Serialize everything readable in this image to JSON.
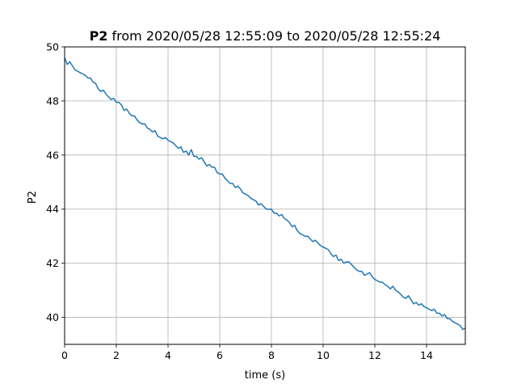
{
  "chart_data": {
    "type": "line",
    "title": {
      "bold": "P2",
      "rest": " from 2020/05/28 12:55:09 to 2020/05/28 12:55:24"
    },
    "xlabel": "time (s)",
    "ylabel": "P2",
    "xlim": [
      0,
      15.5
    ],
    "ylim": [
      39,
      50
    ],
    "x_ticks": [
      0,
      2,
      4,
      6,
      8,
      10,
      12,
      14
    ],
    "y_ticks": [
      40,
      42,
      44,
      46,
      48,
      50
    ],
    "grid": true,
    "series": [
      {
        "color": "#1f77b4",
        "x": [
          0,
          0.1,
          0.2,
          0.3,
          0.4,
          0.5,
          0.6,
          0.7,
          0.8,
          0.9,
          1.0,
          1.1,
          1.2,
          1.3,
          1.4,
          1.5,
          1.6,
          1.7,
          1.8,
          1.9,
          2.0,
          2.1,
          2.2,
          2.3,
          2.4,
          2.5,
          2.6,
          2.7,
          2.8,
          2.9,
          3.0,
          3.1,
          3.2,
          3.3,
          3.4,
          3.5,
          3.6,
          3.7,
          3.8,
          3.9,
          4.0,
          4.1,
          4.2,
          4.3,
          4.4,
          4.5,
          4.6,
          4.7,
          4.8,
          4.9,
          5.0,
          5.1,
          5.2,
          5.3,
          5.4,
          5.5,
          5.6,
          5.7,
          5.8,
          5.9,
          6.0,
          6.1,
          6.2,
          6.3,
          6.4,
          6.5,
          6.6,
          6.7,
          6.8,
          6.9,
          7.0,
          7.1,
          7.2,
          7.3,
          7.4,
          7.5,
          7.6,
          7.7,
          7.8,
          7.9,
          8.0,
          8.1,
          8.2,
          8.3,
          8.4,
          8.5,
          8.6,
          8.7,
          8.8,
          8.9,
          9.0,
          9.1,
          9.2,
          9.3,
          9.4,
          9.5,
          9.6,
          9.7,
          9.8,
          9.9,
          10.0,
          10.1,
          10.2,
          10.3,
          10.4,
          10.5,
          10.6,
          10.7,
          10.8,
          10.9,
          11.0,
          11.1,
          11.2,
          11.3,
          11.4,
          11.5,
          11.6,
          11.7,
          11.8,
          11.9,
          12.0,
          12.1,
          12.2,
          12.3,
          12.4,
          12.5,
          12.6,
          12.7,
          12.8,
          12.9,
          13.0,
          13.1,
          13.2,
          13.3,
          13.4,
          13.5,
          13.6,
          13.7,
          13.8,
          13.9,
          14.0,
          14.1,
          14.2,
          14.3,
          14.4,
          14.5,
          14.6,
          14.7,
          14.8,
          14.9,
          15.0,
          15.1,
          15.2,
          15.3,
          15.4,
          15.5
        ],
        "y": [
          49.6,
          49.35,
          49.45,
          49.3,
          49.15,
          49.1,
          49.05,
          49.0,
          48.95,
          48.85,
          48.85,
          48.7,
          48.65,
          48.45,
          48.35,
          48.4,
          48.25,
          48.15,
          48.05,
          48.1,
          47.95,
          47.95,
          47.85,
          47.65,
          47.7,
          47.55,
          47.45,
          47.45,
          47.3,
          47.2,
          47.15,
          47.15,
          47.0,
          46.95,
          46.85,
          46.9,
          46.7,
          46.65,
          46.6,
          46.65,
          46.55,
          46.5,
          46.45,
          46.35,
          46.25,
          46.3,
          46.1,
          46.15,
          46.0,
          46.2,
          45.95,
          45.95,
          45.85,
          45.9,
          45.75,
          45.6,
          45.65,
          45.55,
          45.55,
          45.35,
          45.3,
          45.3,
          45.15,
          45.05,
          44.95,
          44.95,
          44.8,
          44.85,
          44.75,
          44.6,
          44.55,
          44.5,
          44.4,
          44.35,
          44.3,
          44.15,
          44.2,
          44.1,
          44.0,
          44.0,
          44.0,
          43.85,
          43.85,
          43.75,
          43.8,
          43.65,
          43.6,
          43.5,
          43.35,
          43.4,
          43.2,
          43.1,
          43.05,
          43.0,
          43.0,
          42.9,
          42.8,
          42.85,
          42.75,
          42.65,
          42.6,
          42.55,
          42.5,
          42.35,
          42.25,
          42.3,
          42.1,
          42.15,
          42.0,
          42.05,
          42.05,
          41.95,
          41.85,
          41.75,
          41.7,
          41.7,
          41.55,
          41.6,
          41.65,
          41.5,
          41.4,
          41.35,
          41.3,
          41.3,
          41.2,
          41.15,
          41.05,
          41.15,
          41.0,
          40.95,
          40.85,
          40.75,
          40.7,
          40.8,
          40.65,
          40.5,
          40.55,
          40.45,
          40.5,
          40.4,
          40.35,
          40.3,
          40.25,
          40.3,
          40.15,
          40.15,
          40.05,
          40.1,
          39.95,
          39.95,
          39.85,
          39.8,
          39.75,
          39.7,
          39.55,
          39.6
        ]
      }
    ]
  }
}
